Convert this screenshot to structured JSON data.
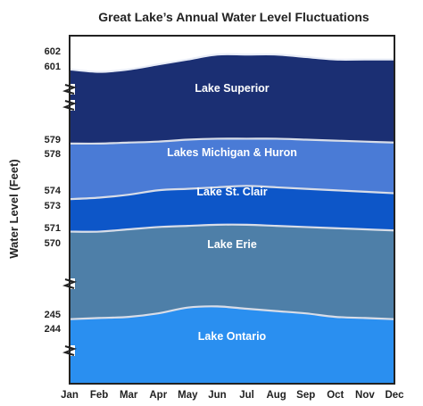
{
  "chart_data": {
    "type": "area",
    "title": "Great Lake’s Annual Water Level Fluctuations",
    "xlabel": "",
    "ylabel": "Water Level (Feet)",
    "categories": [
      "Jan",
      "Feb",
      "Mar",
      "Apr",
      "May",
      "Jun",
      "Jul",
      "Aug",
      "Sep",
      "Oct",
      "Nov",
      "Dec"
    ],
    "y_tick_labels": [
      "602",
      "601",
      "579",
      "578",
      "574",
      "573",
      "571",
      "570",
      "245",
      "244"
    ],
    "axis_breaks": "broken y-axis between lake level groups",
    "grid": false,
    "legend": "none (bands labeled directly)",
    "series": [
      {
        "name": "Lake Superior",
        "color": "#1b2f73",
        "values": [
          601.3,
          601.2,
          601.3,
          601.5,
          601.7,
          601.9,
          601.9,
          601.9,
          601.8,
          601.7,
          601.7,
          601.7
        ]
      },
      {
        "name": "Lakes Michigan & Huron",
        "color": "#4a7bd6",
        "values": [
          578.8,
          578.8,
          578.9,
          579.0,
          579.2,
          579.3,
          579.3,
          579.3,
          579.2,
          579.1,
          579.0,
          578.9
        ]
      },
      {
        "name": "Lake St. Clair",
        "color": "#0d56c8",
        "values": [
          573.3,
          573.4,
          573.6,
          573.9,
          574.0,
          574.1,
          574.2,
          574.1,
          574.0,
          573.9,
          573.8,
          573.7
        ]
      },
      {
        "name": "Lake Erie",
        "color": "#4e7fa8",
        "values": [
          570.7,
          570.7,
          570.9,
          571.1,
          571.2,
          571.3,
          571.3,
          571.2,
          571.1,
          571.0,
          570.9,
          570.8
        ]
      },
      {
        "name": "Lake Ontario",
        "color": "#2a8ff0",
        "values": [
          244.7,
          244.8,
          244.9,
          245.2,
          245.7,
          245.8,
          245.6,
          245.4,
          245.2,
          244.9,
          244.8,
          244.7
        ]
      }
    ]
  }
}
